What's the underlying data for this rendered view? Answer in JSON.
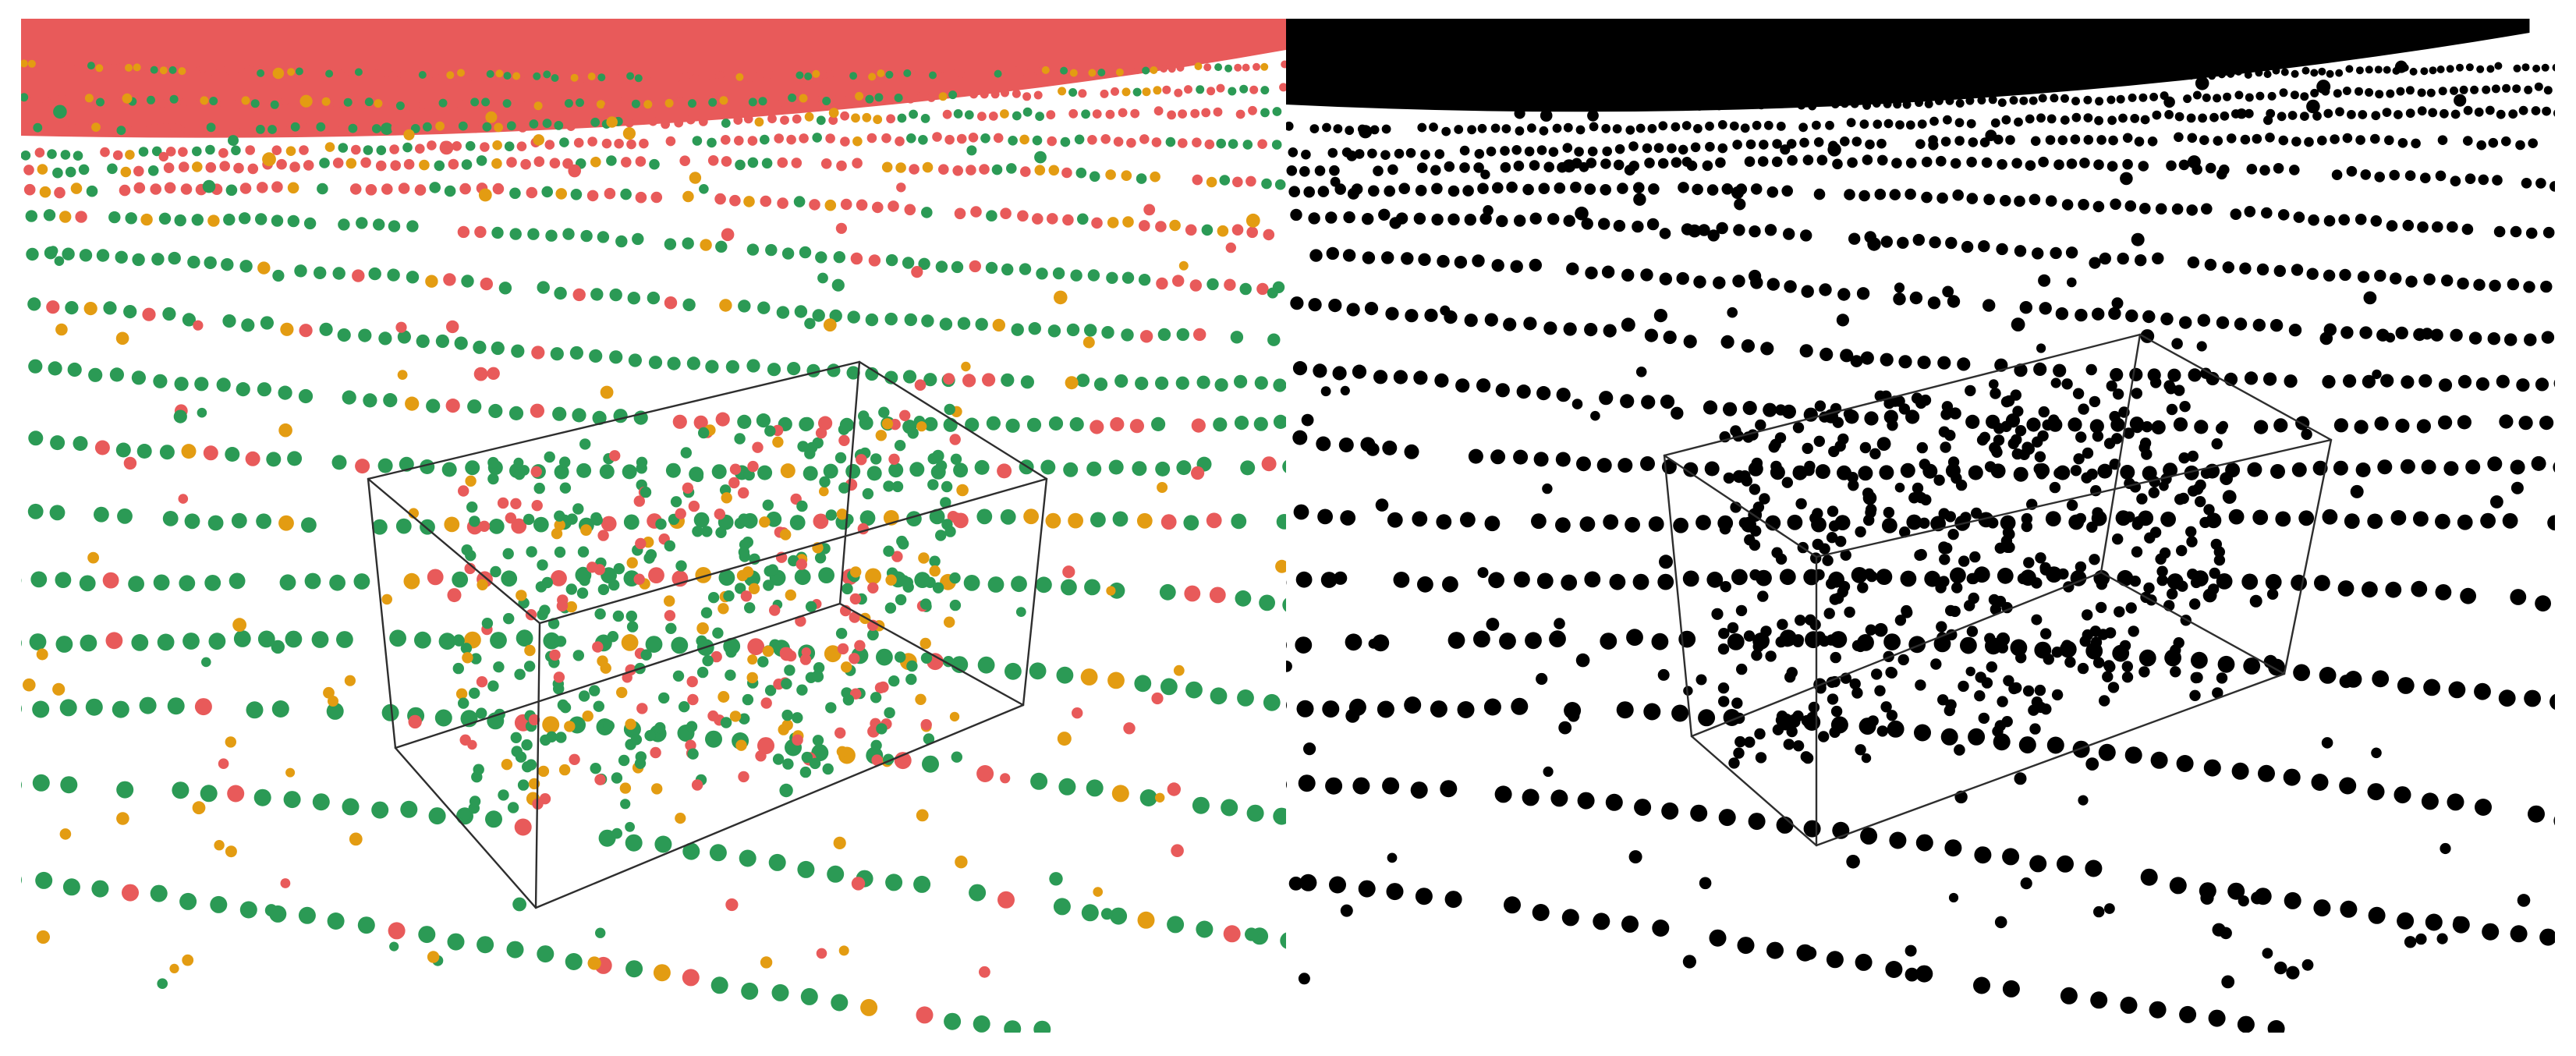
{
  "figure": {
    "panels": [
      {
        "id": "left",
        "coloring": "segmentation",
        "classes": [
          {
            "key": "a",
            "color": "#e85a5a"
          },
          {
            "key": "b",
            "color": "#2b9a55"
          },
          {
            "key": "c",
            "color": "#e39c12"
          }
        ]
      },
      {
        "id": "right",
        "coloring": "monochrome",
        "classes": [
          {
            "key": "a",
            "color": "#000000"
          }
        ]
      }
    ],
    "box_color": "#2e2e2e",
    "background": "#ffffff"
  }
}
